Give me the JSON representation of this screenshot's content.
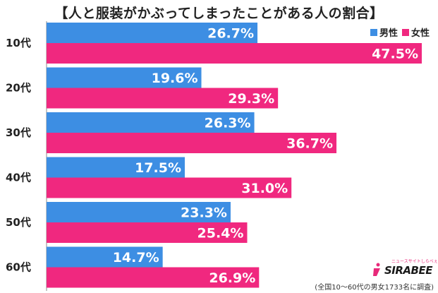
{
  "title": "【人と服装がかぶってしまったことがある人の割合】",
  "legend": [
    {
      "label": "男性",
      "color": "#3d8ee3"
    },
    {
      "label": "女性",
      "color": "#f0287f"
    }
  ],
  "chart_data": {
    "type": "bar",
    "orientation": "horizontal",
    "categories": [
      "10代",
      "20代",
      "30代",
      "40代",
      "50代",
      "60代"
    ],
    "series": [
      {
        "name": "男性",
        "color": "#3d8ee3",
        "values": [
          26.7,
          19.6,
          26.3,
          17.5,
          23.3,
          14.7
        ]
      },
      {
        "name": "女性",
        "color": "#f0287f",
        "values": [
          47.5,
          29.3,
          36.7,
          31.0,
          25.4,
          26.9
        ]
      }
    ],
    "value_labels": {
      "男性": [
        "26.7%",
        "19.6%",
        "26.3%",
        "17.5%",
        "23.3%",
        "14.7%"
      ],
      "女性": [
        "47.5%",
        "29.3%",
        "36.7%",
        "31.0%",
        "25.4%",
        "26.9%"
      ]
    },
    "xlim": [
      0,
      50
    ],
    "grid": false,
    "legend_position": "top-right"
  },
  "logo": {
    "word": "SIRABEE",
    "tagline": "ニュースサイトしらべぇ"
  },
  "footnote": "(全国10～60代の男女1733名に調査)"
}
